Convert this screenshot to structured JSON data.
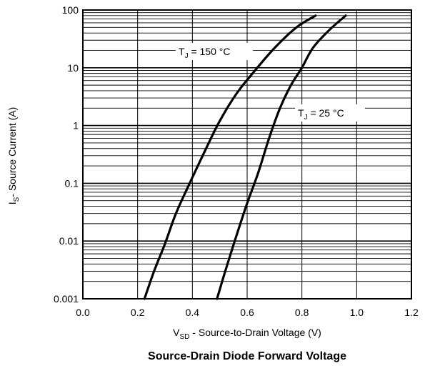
{
  "chart_data": {
    "type": "line",
    "title": "Source-Drain Diode Forward Voltage",
    "xlabel": {
      "main": "V",
      "sub": "SD",
      "rest": " - Source-to-Drain Voltage (V)"
    },
    "ylabel": {
      "main": "I",
      "sub": "S",
      "rest": "- Source Current (A)"
    },
    "xlim": [
      0.0,
      1.2
    ],
    "ylim": [
      0.001,
      100
    ],
    "yscale": "log",
    "grid": true,
    "x_ticks": [
      "0.0",
      "0.2",
      "0.4",
      "0.6",
      "0.8",
      "1.0",
      "1.2"
    ],
    "y_ticks": [
      "0.001",
      "0.01",
      "0.1",
      "1",
      "10",
      "100"
    ],
    "series": [
      {
        "name": {
          "main": "T",
          "sub": "J",
          "rest": " = 150 °C"
        },
        "x": [
          0.225,
          0.26,
          0.3,
          0.34,
          0.39,
          0.45,
          0.5,
          0.56,
          0.62,
          0.7,
          0.78,
          0.85
        ],
        "y": [
          0.001,
          0.003,
          0.009,
          0.03,
          0.1,
          0.4,
          1.2,
          3.5,
          8,
          22,
          50,
          80
        ]
      },
      {
        "name": {
          "main": "T",
          "sub": "J",
          "rest": " = 25 °C"
        },
        "x": [
          0.49,
          0.52,
          0.56,
          0.6,
          0.64,
          0.68,
          0.72,
          0.76,
          0.8,
          0.84,
          0.9,
          0.96
        ],
        "y": [
          0.001,
          0.003,
          0.012,
          0.045,
          0.15,
          0.6,
          2,
          5,
          10,
          22,
          45,
          80
        ]
      }
    ]
  }
}
